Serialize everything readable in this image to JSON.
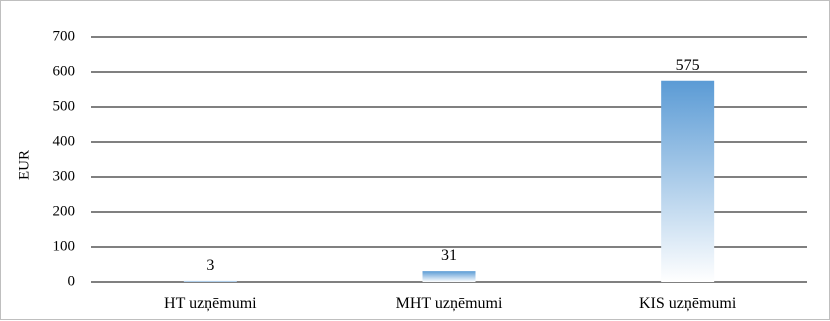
{
  "chart_data": {
    "type": "bar",
    "categories": [
      "HT uzņēmumi",
      "MHT uzņēmumi",
      "KIS uzņēmumi"
    ],
    "values": [
      3,
      31,
      575
    ],
    "data_labels": [
      "3",
      "31",
      "575"
    ],
    "ylabel": "EUR",
    "ylim": [
      0,
      700
    ],
    "yticks": [
      0,
      100,
      200,
      300,
      400,
      500,
      600,
      700
    ],
    "ytick_labels": [
      "0",
      "100",
      "200",
      "300",
      "400",
      "500",
      "600",
      "700"
    ],
    "grid": true,
    "legend": "none",
    "bar_color_top": "#5b9bd5",
    "bar_color_bottom": "#ffffff",
    "grid_color": "#000000"
  }
}
